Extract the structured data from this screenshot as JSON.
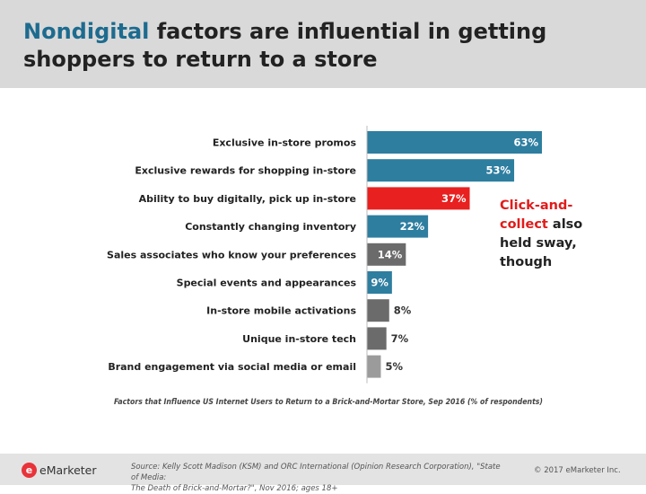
{
  "header": {
    "title_highlight": "Nondigital",
    "title_rest": "factors are influential in getting shoppers to return to a store"
  },
  "callout": {
    "highlight": "Click-and-collect",
    "rest": "also held sway, though"
  },
  "chart_data": {
    "type": "bar",
    "orientation": "horizontal",
    "categories": [
      "Exclusive in-store promos",
      "Exclusive rewards for shopping in-store",
      "Ability to buy digitally, pick up in-store",
      "Constantly changing inventory",
      "Sales associates who know your preferences",
      "Special events and appearances",
      "In-store mobile activations",
      "Unique in-store tech",
      "Brand engagement via social media or email"
    ],
    "values": [
      63,
      53,
      37,
      22,
      14,
      9,
      8,
      7,
      5
    ],
    "value_labels": [
      "63%",
      "53%",
      "37%",
      "22%",
      "14%",
      "9%",
      "8%",
      "7%",
      "5%"
    ],
    "bar_colors": [
      "#2e7ea0",
      "#2e7ea0",
      "#e8201f",
      "#2e7ea0",
      "#6b6b6b",
      "#2e7ea0",
      "#6b6b6b",
      "#6b6b6b",
      "#9b9b9b"
    ],
    "highlighted_category": "Ability to buy digitally, pick up in-store",
    "caption": "Factors that Influence US Internet Users to Return to a Brick-and-Mortar Store, Sep 2016 (% of respondents)",
    "xlim": [
      0,
      63
    ]
  },
  "footer": {
    "logo_mark": "e",
    "logo_text": "eMarketer",
    "source_line1": "Source: Kelly Scott Madison (KSM) and ORC International (Opinion Research Corporation), \"State of Media:",
    "source_line2": "The Death of Brick-and-Mortar?\", Nov 2016; ages 18+",
    "copyright": "© 2017 eMarketer Inc."
  }
}
